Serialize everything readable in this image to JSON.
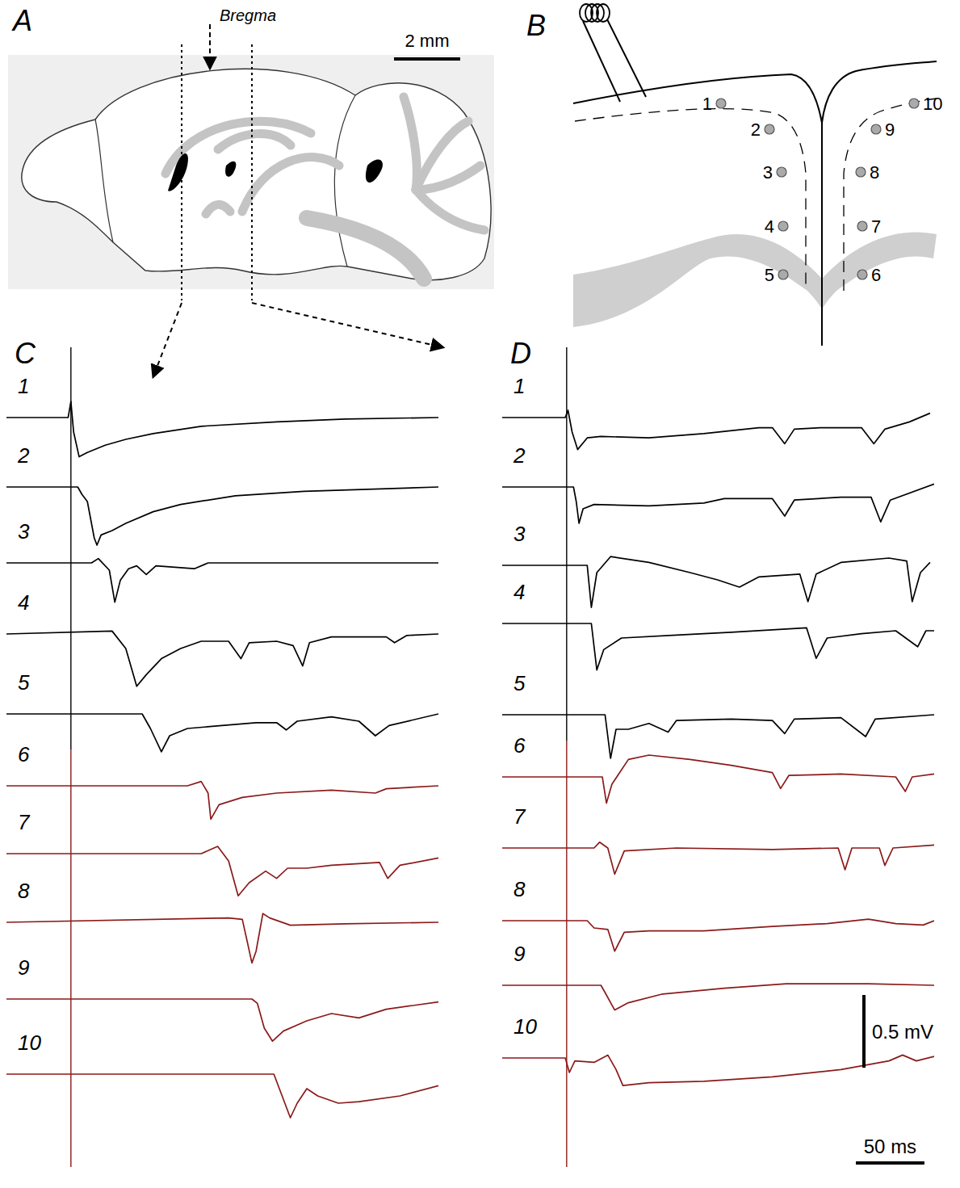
{
  "figure": {
    "A": {
      "label": "A",
      "bregma": "Bregma",
      "scale_bar": {
        "value": 2,
        "label": "2 mm"
      }
    },
    "B": {
      "label": "B",
      "electrodes": [
        "1",
        "2",
        "3",
        "4",
        "5",
        "6",
        "7",
        "8",
        "9",
        "10"
      ]
    }
  },
  "chart_data": [
    {
      "type": "line",
      "title": "C",
      "xlim": [
        -47,
        268
      ],
      "ylim": [
        -0.45,
        0.2
      ],
      "tick_labels": false,
      "stimulus": 0,
      "series": [
        {
          "name": "1",
          "color": "#000000",
          "x": [
            -47,
            -2,
            0,
            2,
            6,
            12,
            25,
            40,
            60,
            95,
            150,
            200,
            268
          ],
          "values": [
            0,
            0,
            0.11,
            -0.1,
            -0.27,
            -0.24,
            -0.19,
            -0.15,
            -0.11,
            -0.06,
            -0.03,
            -0.01,
            0
          ]
        },
        {
          "name": "2",
          "color": "#000000",
          "x": [
            -47,
            5,
            8,
            12,
            17,
            19,
            22,
            30,
            40,
            60,
            80,
            120,
            170,
            268
          ],
          "values": [
            0,
            0,
            -0.05,
            -0.1,
            -0.35,
            -0.4,
            -0.33,
            -0.3,
            -0.25,
            -0.17,
            -0.12,
            -0.06,
            -0.03,
            0
          ]
        },
        {
          "name": "3",
          "color": "#000000",
          "x": [
            -47,
            15,
            20,
            28,
            32,
            36,
            42,
            48,
            55,
            62,
            90,
            100,
            268
          ],
          "values": [
            0,
            0,
            0.03,
            -0.05,
            -0.27,
            -0.12,
            -0.04,
            -0.02,
            -0.08,
            -0.02,
            -0.04,
            0,
            0
          ]
        },
        {
          "name": "4",
          "color": "#000000",
          "x": [
            -47,
            30,
            40,
            48,
            55,
            66,
            80,
            95,
            115,
            124,
            130,
            150,
            162,
            169,
            174,
            190,
            230,
            236,
            245,
            268
          ],
          "values": [
            0,
            0.02,
            -0.1,
            -0.36,
            -0.28,
            -0.17,
            -0.1,
            -0.05,
            -0.05,
            -0.17,
            -0.06,
            -0.05,
            -0.08,
            -0.22,
            -0.06,
            -0.02,
            -0.02,
            -0.06,
            -0.01,
            0
          ]
        },
        {
          "name": "5",
          "color": "#000000",
          "x": [
            -47,
            52,
            58,
            66,
            72,
            85,
            110,
            135,
            150,
            157,
            165,
            190,
            210,
            222,
            232,
            268
          ],
          "values": [
            0,
            0,
            -0.1,
            -0.26,
            -0.15,
            -0.1,
            -0.08,
            -0.06,
            -0.06,
            -0.11,
            -0.05,
            -0.02,
            -0.05,
            -0.15,
            -0.08,
            0
          ]
        },
        {
          "name": "6",
          "color": "#8b1a1a",
          "x": [
            -47,
            85,
            95,
            100,
            102,
            108,
            125,
            150,
            190,
            222,
            230,
            268
          ],
          "values": [
            0,
            0,
            0.03,
            -0.05,
            -0.23,
            -0.13,
            -0.08,
            -0.05,
            -0.03,
            -0.05,
            -0.02,
            0
          ]
        },
        {
          "name": "7",
          "color": "#8b1a1a",
          "x": [
            -47,
            95,
            107,
            115,
            122,
            130,
            142,
            150,
            158,
            172,
            190,
            225,
            231,
            240,
            268
          ],
          "values": [
            0,
            0,
            0.05,
            -0.05,
            -0.29,
            -0.2,
            -0.12,
            -0.17,
            -0.1,
            -0.1,
            -0.08,
            -0.06,
            -0.17,
            -0.08,
            -0.03
          ]
        },
        {
          "name": "8",
          "color": "#8b1a1a",
          "x": [
            -47,
            115,
            125,
            129,
            132,
            135,
            140,
            145,
            160,
            200,
            268
          ],
          "values": [
            0,
            0.03,
            0.02,
            -0.15,
            -0.28,
            -0.2,
            0.06,
            0.03,
            -0.02,
            -0.01,
            0
          ]
        },
        {
          "name": "9",
          "color": "#8b1a1a",
          "x": [
            -47,
            132,
            136,
            141,
            147,
            155,
            172,
            190,
            210,
            230,
            268
          ],
          "values": [
            0,
            0,
            -0.03,
            -0.2,
            -0.29,
            -0.22,
            -0.15,
            -0.1,
            -0.13,
            -0.07,
            -0.02
          ]
        },
        {
          "name": "10",
          "color": "#8b1a1a",
          "x": [
            -47,
            148,
            152,
            160,
            165,
            172,
            180,
            195,
            210,
            240,
            268
          ],
          "values": [
            0,
            0,
            -0.1,
            -0.3,
            -0.2,
            -0.1,
            -0.15,
            -0.2,
            -0.19,
            -0.15,
            -0.08
          ]
        }
      ]
    },
    {
      "type": "line",
      "title": "D",
      "xlim": [
        -47,
        268
      ],
      "ylim": [
        -0.45,
        0.2
      ],
      "tick_labels": false,
      "stimulus": 0,
      "scale_bars": [
        {
          "axis": "y",
          "value": 0.5,
          "label": "0.5 mV"
        },
        {
          "axis": "x",
          "value": 50,
          "label": "50 ms"
        }
      ],
      "series": [
        {
          "name": "1",
          "color": "#000000",
          "x": [
            -47,
            -1,
            1,
            4,
            8,
            15,
            25,
            60,
            100,
            140,
            150,
            159,
            166,
            185,
            215,
            224,
            232,
            250,
            265
          ],
          "values": [
            0,
            0,
            0.05,
            -0.1,
            -0.22,
            -0.14,
            -0.13,
            -0.14,
            -0.11,
            -0.07,
            -0.07,
            -0.18,
            -0.08,
            -0.07,
            -0.07,
            -0.18,
            -0.08,
            -0.03,
            0.03
          ]
        },
        {
          "name": "2",
          "color": "#000000",
          "x": [
            -47,
            5,
            7,
            9,
            12,
            20,
            60,
            100,
            115,
            150,
            159,
            166,
            200,
            222,
            229,
            236,
            268
          ],
          "values": [
            0,
            0,
            -0.1,
            -0.25,
            -0.15,
            -0.12,
            -0.13,
            -0.11,
            -0.08,
            -0.08,
            -0.2,
            -0.09,
            -0.07,
            -0.07,
            -0.24,
            -0.09,
            0.02
          ]
        },
        {
          "name": "3",
          "color": "#000000",
          "x": [
            -47,
            15,
            18,
            22,
            32,
            60,
            90,
            110,
            126,
            140,
            170,
            176,
            182,
            200,
            235,
            248,
            252,
            258,
            265
          ],
          "values": [
            0,
            0,
            -0.29,
            -0.05,
            0.06,
            0.02,
            -0.05,
            -0.1,
            -0.15,
            -0.08,
            -0.06,
            -0.25,
            -0.06,
            0.02,
            0.05,
            0.03,
            -0.25,
            -0.05,
            0.02
          ]
        },
        {
          "name": "4",
          "color": "#000000",
          "x": [
            -47,
            18,
            22,
            27,
            40,
            80,
            120,
            175,
            182,
            190,
            215,
            240,
            256,
            262,
            268
          ],
          "values": [
            0,
            0,
            -0.32,
            -0.18,
            -0.1,
            -0.08,
            -0.06,
            -0.03,
            -0.24,
            -0.1,
            -0.07,
            -0.05,
            -0.16,
            -0.05,
            -0.05
          ]
        },
        {
          "name": "5",
          "color": "#000000",
          "x": [
            -47,
            28,
            32,
            36,
            45,
            60,
            74,
            80,
            120,
            150,
            159,
            166,
            200,
            218,
            225,
            268
          ],
          "values": [
            0,
            0,
            -0.3,
            -0.1,
            -0.1,
            -0.06,
            -0.12,
            -0.04,
            -0.03,
            -0.04,
            -0.13,
            -0.03,
            -0.02,
            -0.15,
            -0.03,
            0
          ]
        },
        {
          "name": "6",
          "color": "#8b1a1a",
          "x": [
            -47,
            26,
            29,
            33,
            45,
            60,
            90,
            120,
            150,
            156,
            162,
            200,
            240,
            247,
            252,
            268
          ],
          "values": [
            0,
            0,
            -0.18,
            -0.05,
            0.12,
            0.15,
            0.12,
            0.08,
            0.03,
            -0.08,
            0.01,
            0.02,
            0,
            -0.1,
            0,
            0.02
          ]
        },
        {
          "name": "7",
          "color": "#8b1a1a",
          "x": [
            -47,
            20,
            24,
            30,
            35,
            42,
            80,
            150,
            198,
            203,
            208,
            228,
            232,
            238,
            268
          ],
          "values": [
            0,
            0,
            0.04,
            0,
            -0.18,
            -0.02,
            0,
            -0.01,
            0,
            -0.15,
            0,
            0,
            -0.12,
            0,
            0.02
          ]
        },
        {
          "name": "8",
          "color": "#8b1a1a",
          "x": [
            -47,
            15,
            20,
            30,
            35,
            42,
            60,
            100,
            150,
            190,
            220,
            240,
            260,
            268
          ],
          "values": [
            0,
            0,
            -0.05,
            -0.06,
            -0.21,
            -0.08,
            -0.07,
            -0.07,
            -0.04,
            -0.02,
            0.01,
            -0.02,
            -0.03,
            0
          ]
        },
        {
          "name": "9",
          "color": "#8b1a1a",
          "x": [
            -47,
            25,
            28,
            35,
            45,
            70,
            115,
            160,
            220,
            268
          ],
          "values": [
            0,
            0,
            -0.05,
            -0.17,
            -0.12,
            -0.06,
            -0.02,
            0.01,
            0.01,
            0
          ]
        },
        {
          "name": "10",
          "color": "#8b1a1a",
          "x": [
            -47,
            -1,
            2,
            6,
            20,
            30,
            36,
            41,
            60,
            100,
            150,
            200,
            235,
            245,
            255,
            268
          ],
          "values": [
            0,
            0,
            -0.1,
            -0.02,
            -0.03,
            0.02,
            -0.08,
            -0.19,
            -0.17,
            -0.16,
            -0.13,
            -0.08,
            -0.02,
            0.02,
            -0.02,
            0.01
          ]
        }
      ]
    }
  ]
}
